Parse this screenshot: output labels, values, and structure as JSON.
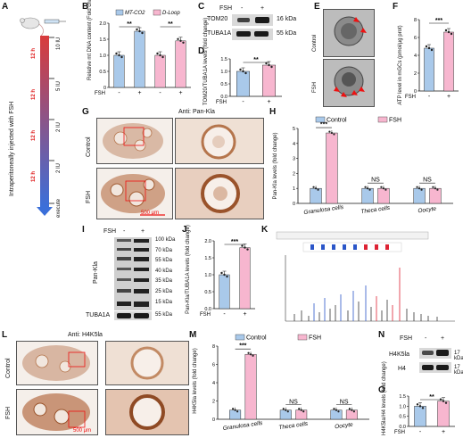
{
  "panels": {
    "A": {
      "letter": "A",
      "side_label": "Intraperitoneally injected with FSH",
      "doses": [
        "10 IU",
        "5 IU",
        "2 IU",
        "2 IU"
      ],
      "intervals": [
        "12 h",
        "12 h",
        "12 h",
        "12 h"
      ],
      "end_label": "execute"
    },
    "B": {
      "letter": "B",
      "ylabel": "Relative mt DNA content (Fold change)",
      "legend": [
        "MT-CO2",
        "D-Loop"
      ],
      "xlabel_prefix": "FSH",
      "x_ticks": [
        "-",
        "+",
        "-",
        "+"
      ],
      "sig": [
        "**",
        "**"
      ],
      "y_ticks": [
        "0",
        "0.5",
        "1.0",
        "1.5",
        "2.0"
      ]
    },
    "C": {
      "letter": "C",
      "fsh_label": "FSH",
      "lanes": [
        "-",
        "+"
      ],
      "rows": [
        {
          "name": "TOM20",
          "kda": "16 kDa"
        },
        {
          "name": "TUBA1A",
          "kda": "55 kDa"
        }
      ]
    },
    "D": {
      "letter": "D",
      "ylabel": "TOM20/TUBA1A levels (fold change)",
      "sig": "**",
      "x_ticks": [
        "-",
        "+"
      ],
      "xlabel_prefix": "FSH",
      "y_ticks": [
        "0.0",
        "0.5",
        "1.0",
        "1.5"
      ]
    },
    "E": {
      "letter": "E",
      "labels": [
        "Control",
        "FSH"
      ]
    },
    "F": {
      "letter": "F",
      "ylabel": "ATP level in mGCs (pmol/μg prot)",
      "sig": "***",
      "x_ticks": [
        "-",
        "+"
      ],
      "xlabel_prefix": "FSH",
      "y_ticks": [
        "0",
        "2",
        "4",
        "6",
        "8"
      ]
    },
    "G": {
      "letter": "G",
      "title": "Anti: Pan-Kla",
      "rows": [
        "Control",
        "FSH"
      ],
      "scale": "500 μm"
    },
    "H": {
      "letter": "H",
      "ylabel": "Pan-Kla levels (fold change)",
      "legend": [
        "Control",
        "FSH"
      ],
      "categories": [
        "Granulosa cells",
        "Theca cells",
        "Oocyte"
      ],
      "sig": [
        "***",
        "NS",
        "NS"
      ],
      "y_ticks": [
        "0",
        "1",
        "2",
        "3",
        "4",
        "5"
      ]
    },
    "I": {
      "letter": "I",
      "fsh_label": "FSH",
      "lanes": [
        "-",
        "+"
      ],
      "side_label": "Pan-Kla",
      "markers": [
        "100 kDa",
        "70 kDa",
        "55 kDa",
        "40 kDa",
        "35 kDa",
        "25 kDa",
        "15 kDa"
      ],
      "loading": {
        "name": "TUBA1A",
        "kda": "55 kDa"
      }
    },
    "J": {
      "letter": "J",
      "ylabel": "Pan-Kla/TUBA1A levels (fold change)",
      "sig": "***",
      "x_ticks": [
        "-",
        "+"
      ],
      "xlabel_prefix": "FSH",
      "y_ticks": [
        "0.0",
        "0.5",
        "1.0",
        "1.5",
        "2.0"
      ]
    },
    "K": {
      "letter": "K"
    },
    "L": {
      "letter": "L",
      "title": "Anti: H4K5la",
      "rows": [
        "Control",
        "FSH"
      ],
      "scale": "500 μm"
    },
    "M": {
      "letter": "M",
      "ylabel": "H4K5la levels (fold change)",
      "legend": [
        "Control",
        "FSH"
      ],
      "categories": [
        "Granulosa cells",
        "Theca cells",
        "Oocyte"
      ],
      "sig": [
        "***",
        "NS",
        "NS"
      ],
      "y_ticks": [
        "0",
        "2",
        "4",
        "6",
        "8"
      ]
    },
    "N": {
      "letter": "N",
      "fsh_label": "FSH",
      "lanes": [
        "-",
        "+"
      ],
      "rows": [
        {
          "name": "H4K5la",
          "kda": "17 kDa"
        },
        {
          "name": "H4",
          "kda": "17 kDa"
        }
      ]
    },
    "O": {
      "letter": "O",
      "ylabel": "H4K5la/H4 levels (fold change)",
      "sig": "**",
      "x_ticks": [
        "-",
        "+"
      ],
      "xlabel_prefix": "FSH",
      "y_ticks": [
        "0.0",
        "0.5",
        "1.0",
        "1.5"
      ]
    }
  },
  "colors": {
    "control": "#a9c9ea",
    "fsh": "#f7b6cf",
    "stain": "#b5754c",
    "tissue_bg": "#f0e4dc"
  },
  "chart_data": [
    {
      "id": "B",
      "type": "bar",
      "categories": [
        "MT-CO2 -",
        "MT-CO2 +",
        "D-Loop -",
        "D-Loop +"
      ],
      "values": [
        1.0,
        1.75,
        1.0,
        1.45
      ],
      "ylim": [
        0,
        2.0
      ]
    },
    {
      "id": "D",
      "type": "bar",
      "categories": [
        "-",
        "+"
      ],
      "values": [
        1.0,
        1.25
      ],
      "ylim": [
        0,
        1.5
      ]
    },
    {
      "id": "F",
      "type": "bar",
      "categories": [
        "-",
        "+"
      ],
      "values": [
        4.8,
        6.6
      ],
      "ylim": [
        0,
        8
      ]
    },
    {
      "id": "H",
      "type": "bar",
      "categories": [
        "Granulosa cells",
        "Theca cells",
        "Oocyte"
      ],
      "series": [
        {
          "name": "Control",
          "values": [
            1.0,
            1.0,
            1.0
          ]
        },
        {
          "name": "FSH",
          "values": [
            4.7,
            1.0,
            1.0
          ]
        }
      ],
      "ylim": [
        0,
        5
      ]
    },
    {
      "id": "J",
      "type": "bar",
      "categories": [
        "-",
        "+"
      ],
      "values": [
        1.0,
        1.8
      ],
      "ylim": [
        0,
        2.0
      ]
    },
    {
      "id": "M",
      "type": "bar",
      "categories": [
        "Granulosa cells",
        "Theca cells",
        "Oocyte"
      ],
      "series": [
        {
          "name": "Control",
          "values": [
            1.0,
            1.0,
            1.0
          ]
        },
        {
          "name": "FSH",
          "values": [
            7.1,
            1.0,
            1.0
          ]
        }
      ],
      "ylim": [
        0,
        8
      ]
    },
    {
      "id": "O",
      "type": "bar",
      "categories": [
        "-",
        "+"
      ],
      "values": [
        1.0,
        1.25
      ],
      "ylim": [
        0,
        1.5
      ]
    }
  ]
}
